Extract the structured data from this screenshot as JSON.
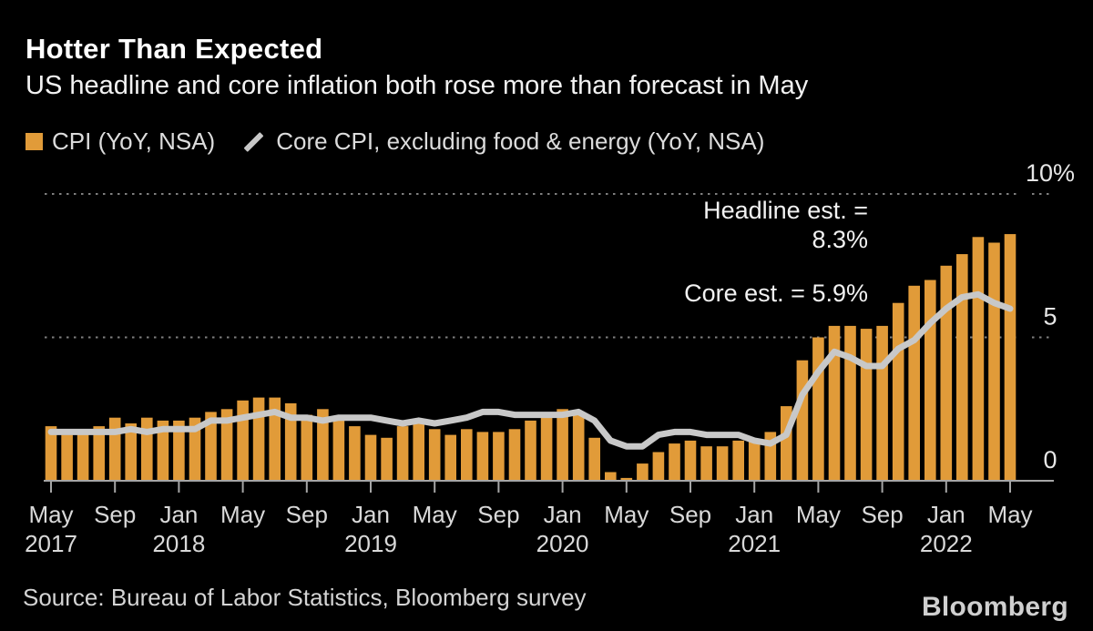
{
  "colors": {
    "background": "#000000",
    "bar": "#E19B39",
    "line": "#C8C8C8",
    "grid": "#7F7F7F",
    "axis": "#A6A6A6",
    "tick_label": "#D9D9D9",
    "y_label": "#E6E6E6",
    "annotation": "#F2F2F2",
    "title": "#FFFFFF"
  },
  "chart_data": {
    "type": "bar",
    "title": "Hotter Than Expected",
    "subtitle": "US headline and core inflation both rose more than forecast in May",
    "legend_position": "top",
    "yaxis_side": "right",
    "grid": "horizontal dotted at 5 and 10",
    "ylim": [
      0,
      10
    ],
    "categories": [
      "May 2017",
      "Jun 2017",
      "Jul 2017",
      "Aug 2017",
      "Sep 2017",
      "Oct 2017",
      "Nov 2017",
      "Dec 2017",
      "Jan 2018",
      "Feb 2018",
      "Mar 2018",
      "Apr 2018",
      "May 2018",
      "Jun 2018",
      "Jul 2018",
      "Aug 2018",
      "Sep 2018",
      "Oct 2018",
      "Nov 2018",
      "Dec 2018",
      "Jan 2019",
      "Feb 2019",
      "Mar 2019",
      "Apr 2019",
      "May 2019",
      "Jun 2019",
      "Jul 2019",
      "Aug 2019",
      "Sep 2019",
      "Oct 2019",
      "Nov 2019",
      "Dec 2019",
      "Jan 2020",
      "Feb 2020",
      "Mar 2020",
      "Apr 2020",
      "May 2020",
      "Jun 2020",
      "Jul 2020",
      "Aug 2020",
      "Sep 2020",
      "Oct 2020",
      "Nov 2020",
      "Dec 2020",
      "Jan 2021",
      "Feb 2021",
      "Mar 2021",
      "Apr 2021",
      "May 2021",
      "Jun 2021",
      "Jul 2021",
      "Aug 2021",
      "Sep 2021",
      "Oct 2021",
      "Nov 2021",
      "Dec 2021",
      "Jan 2022",
      "Feb 2022",
      "Mar 2022",
      "Apr 2022",
      "May 2022"
    ],
    "series": [
      {
        "name": "CPI (YoY, NSA)",
        "type": "bar",
        "color": "#E19B39",
        "values": [
          1.9,
          1.6,
          1.7,
          1.9,
          2.2,
          2.0,
          2.2,
          2.1,
          2.1,
          2.2,
          2.4,
          2.5,
          2.8,
          2.9,
          2.9,
          2.7,
          2.3,
          2.5,
          2.2,
          1.9,
          1.6,
          1.5,
          1.9,
          2.0,
          1.8,
          1.6,
          1.8,
          1.7,
          1.7,
          1.8,
          2.1,
          2.3,
          2.5,
          2.3,
          1.5,
          0.3,
          0.1,
          0.6,
          1.0,
          1.3,
          1.4,
          1.2,
          1.2,
          1.4,
          1.4,
          1.7,
          2.6,
          4.2,
          5.0,
          5.4,
          5.4,
          5.3,
          5.4,
          6.2,
          6.8,
          7.0,
          7.5,
          7.9,
          8.5,
          8.3,
          8.6
        ]
      },
      {
        "name": "Core CPI, excluding food & energy (YoY, NSA)",
        "type": "line",
        "color": "#C8C8C8",
        "values": [
          1.7,
          1.7,
          1.7,
          1.7,
          1.7,
          1.8,
          1.7,
          1.8,
          1.8,
          1.8,
          2.1,
          2.1,
          2.2,
          2.3,
          2.4,
          2.2,
          2.2,
          2.1,
          2.2,
          2.2,
          2.2,
          2.1,
          2.0,
          2.1,
          2.0,
          2.1,
          2.2,
          2.4,
          2.4,
          2.3,
          2.3,
          2.3,
          2.3,
          2.4,
          2.1,
          1.4,
          1.2,
          1.2,
          1.6,
          1.7,
          1.7,
          1.6,
          1.6,
          1.6,
          1.4,
          1.3,
          1.6,
          3.0,
          3.8,
          4.5,
          4.3,
          4.0,
          4.0,
          4.6,
          4.9,
          5.5,
          6.0,
          6.4,
          6.5,
          6.2,
          6.0
        ]
      }
    ],
    "y_ticks": [
      {
        "label": "10%",
        "value": 10
      },
      {
        "label": "5",
        "value": 5
      },
      {
        "label": "0",
        "value": 0
      }
    ],
    "x_ticks": [
      {
        "index": 0,
        "month": "May",
        "year": "2017"
      },
      {
        "index": 4,
        "month": "Sep"
      },
      {
        "index": 8,
        "month": "Jan",
        "year": "2018"
      },
      {
        "index": 12,
        "month": "May"
      },
      {
        "index": 16,
        "month": "Sep"
      },
      {
        "index": 20,
        "month": "Jan",
        "year": "2019"
      },
      {
        "index": 24,
        "month": "May"
      },
      {
        "index": 28,
        "month": "Sep"
      },
      {
        "index": 32,
        "month": "Jan",
        "year": "2020"
      },
      {
        "index": 36,
        "month": "May"
      },
      {
        "index": 40,
        "month": "Sep"
      },
      {
        "index": 44,
        "month": "Jan",
        "year": "2021"
      },
      {
        "index": 48,
        "month": "May"
      },
      {
        "index": 52,
        "month": "Sep"
      },
      {
        "index": 56,
        "month": "Jan",
        "year": "2022"
      },
      {
        "index": 60,
        "month": "May"
      }
    ],
    "annotations": [
      {
        "id": "headline-estimate",
        "lines": [
          "Headline est. =",
          "8.3%"
        ]
      },
      {
        "id": "core-estimate",
        "lines": [
          "Core est. = 5.9%"
        ]
      }
    ]
  },
  "source": {
    "text": "Source: Bureau of Labor Statistics, Bloomberg survey"
  },
  "branding": {
    "logo": "Bloomberg"
  }
}
